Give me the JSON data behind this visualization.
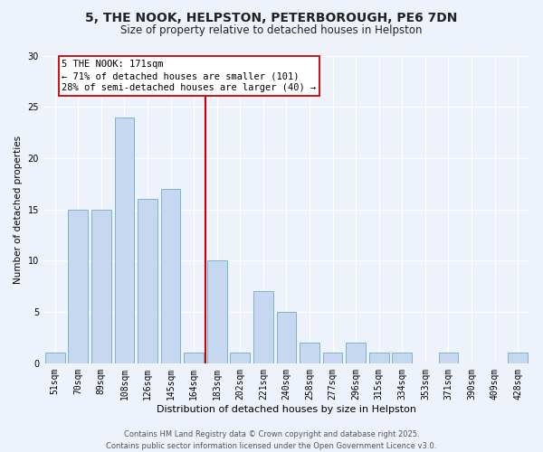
{
  "title": "5, THE NOOK, HELPSTON, PETERBOROUGH, PE6 7DN",
  "subtitle": "Size of property relative to detached houses in Helpston",
  "xlabel": "Distribution of detached houses by size in Helpston",
  "ylabel": "Number of detached properties",
  "categories": [
    "51sqm",
    "70sqm",
    "89sqm",
    "108sqm",
    "126sqm",
    "145sqm",
    "164sqm",
    "183sqm",
    "202sqm",
    "221sqm",
    "240sqm",
    "258sqm",
    "277sqm",
    "296sqm",
    "315sqm",
    "334sqm",
    "353sqm",
    "371sqm",
    "390sqm",
    "409sqm",
    "428sqm"
  ],
  "values": [
    1,
    15,
    15,
    24,
    16,
    17,
    1,
    10,
    1,
    7,
    5,
    2,
    1,
    2,
    1,
    1,
    0,
    1,
    0,
    0,
    1
  ],
  "bar_color": "#c5d8f0",
  "bar_edge_color": "#7ab4d8",
  "vline_color": "#cc0000",
  "annotation_line1": "5 THE NOOK: 171sqm",
  "annotation_line2": "← 71% of detached houses are smaller (101)",
  "annotation_line3": "28% of semi-detached houses are larger (40) →",
  "annotation_box_color": "#ffffff",
  "annotation_box_edge": "#cc0000",
  "ylim": [
    0,
    30
  ],
  "yticks": [
    0,
    5,
    10,
    15,
    20,
    25,
    30
  ],
  "bg_color": "#eef2fb",
  "grid_color": "#ffffff",
  "footer_text": "Contains HM Land Registry data © Crown copyright and database right 2025.\nContains public sector information licensed under the Open Government Licence v3.0.",
  "title_fontsize": 10,
  "subtitle_fontsize": 8.5,
  "xlabel_fontsize": 8,
  "ylabel_fontsize": 7.5,
  "tick_fontsize": 7,
  "annot_fontsize": 7.5,
  "footer_fontsize": 6
}
